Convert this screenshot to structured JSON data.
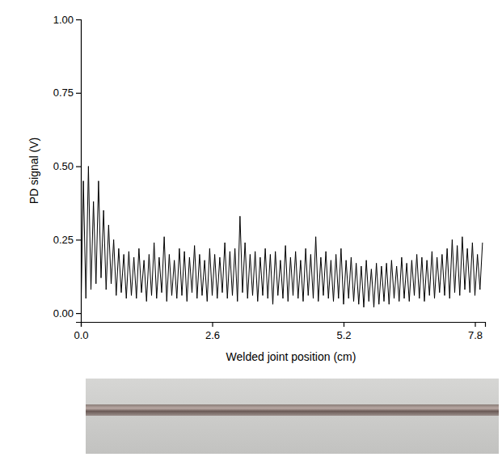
{
  "chart_data": {
    "type": "line",
    "x_label": "Welded joint position (cm)",
    "y_label": "PD signal (V)",
    "color": "#000000",
    "xlim": [
      0,
      8.0
    ],
    "ylim": [
      -0.03,
      1.0
    ],
    "xticks": [
      {
        "value": 0,
        "label": "0.0"
      },
      2.6,
      5.2,
      7.8
    ],
    "yticks": [
      {
        "value": 0,
        "label": "0.00"
      },
      {
        "value": 0.25,
        "label": "0.25"
      },
      {
        "value": 0.5,
        "label": "0.50"
      },
      {
        "value": 0.75,
        "label": "0.75"
      },
      {
        "value": 1,
        "label": "1.00"
      }
    ],
    "x": [
      0,
      0.05,
      0.1,
      0.15,
      0.2,
      0.25,
      0.3,
      0.35,
      0.4,
      0.45,
      0.5,
      0.55,
      0.6,
      0.65,
      0.7,
      0.75,
      0.8,
      0.85,
      0.9,
      0.95,
      1.0,
      1.05,
      1.1,
      1.15,
      1.2,
      1.25,
      1.3,
      1.35,
      1.4,
      1.45,
      1.5,
      1.55,
      1.6,
      1.65,
      1.7,
      1.75,
      1.8,
      1.85,
      1.9,
      1.95,
      2.0,
      2.05,
      2.1,
      2.15,
      2.2,
      2.25,
      2.3,
      2.35,
      2.4,
      2.45,
      2.5,
      2.55,
      2.6,
      2.65,
      2.7,
      2.75,
      2.8,
      2.85,
      2.9,
      2.95,
      3.0,
      3.05,
      3.1,
      3.15,
      3.2,
      3.25,
      3.3,
      3.35,
      3.4,
      3.45,
      3.5,
      3.55,
      3.6,
      3.65,
      3.7,
      3.75,
      3.8,
      3.85,
      3.9,
      3.95,
      4.0,
      4.05,
      4.1,
      4.15,
      4.2,
      4.25,
      4.3,
      4.35,
      4.4,
      4.45,
      4.5,
      4.55,
      4.6,
      4.65,
      4.7,
      4.75,
      4.8,
      4.85,
      4.9,
      4.95,
      5.0,
      5.05,
      5.1,
      5.15,
      5.2,
      5.25,
      5.3,
      5.35,
      5.4,
      5.45,
      5.5,
      5.55,
      5.6,
      5.65,
      5.7,
      5.75,
      5.8,
      5.85,
      5.9,
      5.95,
      6.0,
      6.05,
      6.1,
      6.15,
      6.2,
      6.25,
      6.3,
      6.35,
      6.4,
      6.45,
      6.5,
      6.55,
      6.6,
      6.65,
      6.7,
      6.75,
      6.8,
      6.85,
      6.9,
      6.95,
      7.0,
      7.05,
      7.1,
      7.15,
      7.2,
      7.25,
      7.3,
      7.35,
      7.4,
      7.45,
      7.5,
      7.55,
      7.6,
      7.65,
      7.7,
      7.75,
      7.8,
      7.85,
      7.9,
      7.95
    ],
    "values": [
      -0.01,
      0.45,
      0.05,
      0.5,
      0.08,
      0.38,
      0.1,
      0.45,
      0.12,
      0.35,
      0.08,
      0.3,
      0.1,
      0.25,
      0.06,
      0.22,
      0.07,
      0.2,
      0.05,
      0.21,
      0.06,
      0.19,
      0.05,
      0.22,
      0.07,
      0.18,
      0.04,
      0.2,
      0.06,
      0.24,
      0.05,
      0.19,
      0.07,
      0.26,
      0.04,
      0.2,
      0.06,
      0.18,
      0.05,
      0.22,
      0.06,
      0.21,
      0.04,
      0.19,
      0.07,
      0.23,
      0.05,
      0.2,
      0.06,
      0.18,
      0.04,
      0.22,
      0.06,
      0.2,
      0.05,
      0.19,
      0.07,
      0.24,
      0.05,
      0.21,
      0.06,
      0.22,
      0.04,
      0.33,
      0.07,
      0.24,
      0.05,
      0.2,
      0.06,
      0.21,
      0.04,
      0.19,
      0.06,
      0.22,
      0.05,
      0.2,
      0.03,
      0.21,
      0.06,
      0.18,
      0.05,
      0.23,
      0.04,
      0.19,
      0.06,
      0.21,
      0.05,
      0.18,
      0.04,
      0.22,
      0.06,
      0.2,
      0.05,
      0.26,
      0.04,
      0.19,
      0.06,
      0.21,
      0.05,
      0.18,
      0.04,
      0.2,
      0.05,
      0.22,
      0.03,
      0.18,
      0.05,
      0.19,
      0.04,
      0.17,
      0.03,
      0.16,
      0.02,
      0.18,
      0.04,
      0.15,
      0.02,
      0.17,
      0.03,
      0.16,
      0.04,
      0.17,
      0.03,
      0.18,
      0.05,
      0.16,
      0.04,
      0.19,
      0.05,
      0.17,
      0.04,
      0.18,
      0.06,
      0.2,
      0.05,
      0.19,
      0.04,
      0.18,
      0.06,
      0.21,
      0.05,
      0.19,
      0.07,
      0.2,
      0.06,
      0.22,
      0.05,
      0.25,
      0.07,
      0.23,
      0.06,
      0.26,
      0.08,
      0.22,
      0.07,
      0.24,
      0.06,
      0.2,
      0.08,
      0.24
    ]
  }
}
